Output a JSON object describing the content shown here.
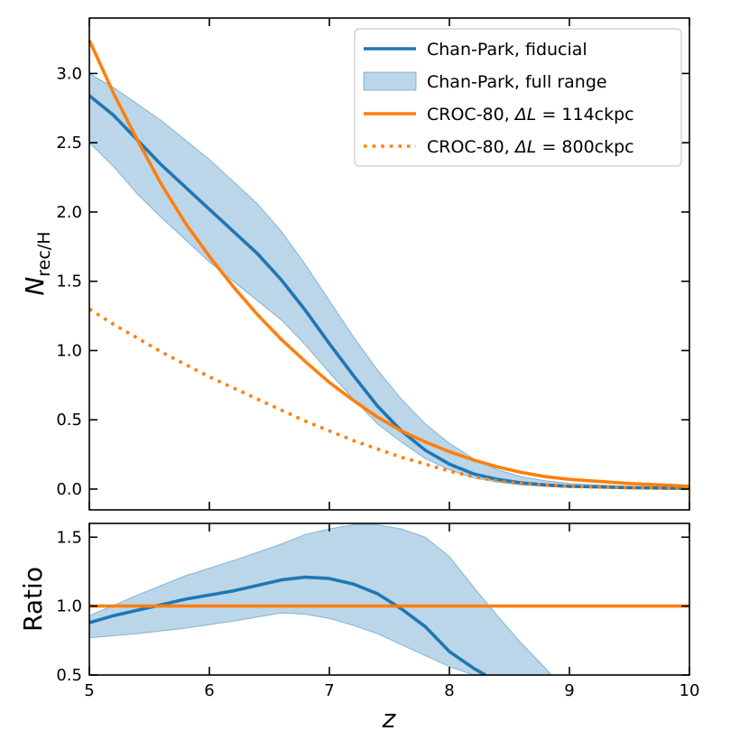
{
  "chart_data": [
    {
      "type": "line",
      "panel": "main",
      "xlabel": "z",
      "ylabel_main": "N",
      "ylabel_sub": "rec/H",
      "xlim": [
        5,
        10
      ],
      "ylim": [
        -0.15,
        3.4
      ],
      "xticks": [
        "5",
        "6",
        "7",
        "8",
        "9",
        "10"
      ],
      "yticks": [
        {
          "value": 0.0,
          "label": "0.0"
        },
        {
          "value": 0.5,
          "label": "0.5"
        },
        {
          "value": 1.0,
          "label": "1.0"
        },
        {
          "value": 1.5,
          "label": "1.5"
        },
        {
          "value": 2.0,
          "label": "2.0"
        },
        {
          "value": 2.5,
          "label": "2.5"
        },
        {
          "value": 3.0,
          "label": "3.0"
        }
      ],
      "grid": false,
      "legend_position": "top-right",
      "legend": [
        {
          "text": "Chan-Park, fiducial",
          "style": "line",
          "color": "#1f77b4"
        },
        {
          "text": "Chan-Park, full range",
          "style": "band",
          "color": "#1f77b4"
        },
        {
          "text_pre": "CROC-80, ",
          "text_mid": "ΔL",
          "text_post": " = 114ckpc",
          "style": "line",
          "color": "#ff7f0e"
        },
        {
          "text_pre": "CROC-80, ",
          "text_mid": "ΔL",
          "text_post": " = 800ckpc",
          "style": "dotted",
          "color": "#ff7f0e"
        }
      ],
      "series": [
        {
          "name": "Chan-Park, fiducial",
          "style": "line",
          "color": "#1f77b4",
          "x": [
            5.0,
            5.2,
            5.4,
            5.6,
            5.8,
            6.0,
            6.2,
            6.4,
            6.6,
            6.8,
            7.0,
            7.2,
            7.4,
            7.6,
            7.8,
            8.0,
            8.2,
            8.4,
            8.6,
            8.8,
            9.0,
            9.5,
            10.0
          ],
          "y": [
            2.84,
            2.7,
            2.52,
            2.34,
            2.18,
            2.02,
            1.86,
            1.7,
            1.51,
            1.29,
            1.05,
            0.82,
            0.6,
            0.42,
            0.28,
            0.18,
            0.11,
            0.07,
            0.045,
            0.03,
            0.02,
            0.01,
            0.005
          ]
        },
        {
          "name": "Chan-Park, full range",
          "style": "band",
          "color": "#1f77b4",
          "x": [
            5.0,
            5.2,
            5.4,
            5.6,
            5.8,
            6.0,
            6.2,
            6.4,
            6.6,
            6.8,
            7.0,
            7.2,
            7.4,
            7.6,
            7.8,
            8.0,
            8.2,
            8.4,
            8.6,
            8.8,
            9.0,
            9.5,
            10.0
          ],
          "y_low": [
            2.5,
            2.33,
            2.13,
            1.96,
            1.8,
            1.64,
            1.5,
            1.36,
            1.22,
            1.04,
            0.84,
            0.65,
            0.47,
            0.34,
            0.22,
            0.14,
            0.08,
            0.05,
            0.03,
            0.02,
            0.012,
            0.006,
            0.003
          ],
          "y_high": [
            3.0,
            2.9,
            2.78,
            2.66,
            2.52,
            2.38,
            2.22,
            2.06,
            1.86,
            1.62,
            1.36,
            1.1,
            0.86,
            0.65,
            0.47,
            0.33,
            0.22,
            0.14,
            0.09,
            0.06,
            0.04,
            0.02,
            0.01
          ]
        },
        {
          "name": "CROC-80, ΔL = 114ckpc",
          "style": "line",
          "color": "#ff7f0e",
          "x": [
            5.0,
            5.2,
            5.4,
            5.6,
            5.8,
            6.0,
            6.2,
            6.4,
            6.6,
            6.8,
            7.0,
            7.2,
            7.4,
            7.6,
            7.8,
            8.0,
            8.2,
            8.4,
            8.6,
            8.8,
            9.0,
            9.5,
            10.0
          ],
          "y": [
            3.24,
            2.86,
            2.52,
            2.2,
            1.92,
            1.68,
            1.46,
            1.26,
            1.08,
            0.92,
            0.77,
            0.64,
            0.52,
            0.42,
            0.34,
            0.27,
            0.21,
            0.16,
            0.12,
            0.09,
            0.07,
            0.04,
            0.02
          ]
        },
        {
          "name": "CROC-80, ΔL = 800ckpc",
          "style": "dotted",
          "color": "#ff7f0e",
          "x": [
            5.0,
            5.2,
            5.4,
            5.6,
            5.8,
            6.0,
            6.2,
            6.4,
            6.6,
            6.8,
            7.0,
            7.2,
            7.4,
            7.6,
            7.8,
            8.0,
            8.2,
            8.4,
            8.6,
            8.8,
            9.0,
            9.5,
            10.0
          ],
          "y": [
            1.3,
            1.19,
            1.09,
            0.99,
            0.9,
            0.81,
            0.73,
            0.65,
            0.57,
            0.49,
            0.42,
            0.35,
            0.29,
            0.23,
            0.18,
            0.13,
            0.09,
            0.06,
            0.04,
            0.03,
            0.02,
            0.01,
            0.005
          ]
        }
      ]
    },
    {
      "type": "line",
      "panel": "ratio",
      "xlabel": "z",
      "ylabel": "Ratio",
      "xlim": [
        5,
        10
      ],
      "ylim": [
        0.5,
        1.6
      ],
      "xticks": [
        "5",
        "6",
        "7",
        "8",
        "9",
        "10"
      ],
      "yticks": [
        {
          "value": 0.5,
          "label": "0.5"
        },
        {
          "value": 1.0,
          "label": "1.0"
        },
        {
          "value": 1.5,
          "label": "1.5"
        }
      ],
      "grid": false,
      "series": [
        {
          "name": "Chan-Park, full range",
          "style": "band",
          "color": "#1f77b4",
          "x": [
            5.0,
            5.4,
            5.8,
            6.2,
            6.6,
            6.8,
            7.0,
            7.2,
            7.4,
            7.6,
            7.8,
            8.0,
            8.2,
            8.4,
            8.6,
            8.8,
            8.85
          ],
          "y_low": [
            0.77,
            0.8,
            0.84,
            0.89,
            0.95,
            0.94,
            0.91,
            0.86,
            0.8,
            0.72,
            0.64,
            0.56,
            0.5,
            0.5,
            0.5,
            0.5,
            0.5
          ],
          "y_high": [
            0.93,
            1.08,
            1.22,
            1.33,
            1.45,
            1.52,
            1.56,
            1.59,
            1.59,
            1.56,
            1.5,
            1.36,
            1.14,
            0.93,
            0.73,
            0.55,
            0.5
          ]
        },
        {
          "name": "Chan-Park, fiducial",
          "style": "line",
          "color": "#1f77b4",
          "x": [
            5.0,
            5.2,
            5.4,
            5.6,
            5.8,
            6.0,
            6.2,
            6.4,
            6.6,
            6.8,
            7.0,
            7.2,
            7.4,
            7.6,
            7.8,
            8.0,
            8.2,
            8.3
          ],
          "y": [
            0.88,
            0.93,
            0.97,
            1.01,
            1.05,
            1.08,
            1.11,
            1.15,
            1.19,
            1.21,
            1.2,
            1.16,
            1.09,
            0.98,
            0.85,
            0.67,
            0.55,
            0.5
          ]
        },
        {
          "name": "CROC-80, ΔL = 114ckpc",
          "style": "line",
          "color": "#ff7f0e",
          "x": [
            5.0,
            10.0
          ],
          "y": [
            1.0,
            1.0
          ]
        }
      ]
    }
  ]
}
